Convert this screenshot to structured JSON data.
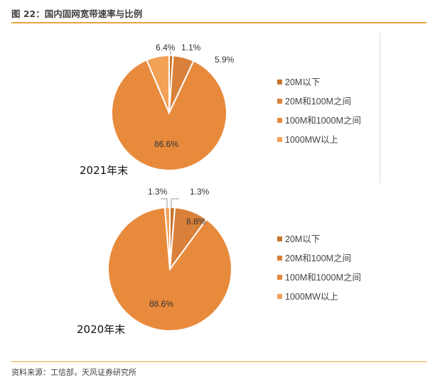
{
  "figure": {
    "title": "图 22：国内固网宽带速率与比例",
    "source": "资料来源：工信部，天风证券研究所"
  },
  "colors": {
    "accent_rule": "#E8A33A",
    "series": [
      "#C8742D",
      "#D9813A",
      "#E88A3C",
      "#F2A157"
    ]
  },
  "chart_data": [
    {
      "type": "pie",
      "title": "2021年末",
      "categories": [
        "20M以下",
        "20M和100M之间",
        "100M和1000M之间",
        "1000MW以上"
      ],
      "values": [
        1.1,
        5.9,
        86.6,
        6.4
      ],
      "labels": [
        "1.1%",
        "5.9%",
        "86.6%",
        "6.4%"
      ],
      "legend": "right"
    },
    {
      "type": "pie",
      "title": "2020年末",
      "categories": [
        "20M以下",
        "20M和100M之间",
        "100M和1000M之间",
        "1000MW以上"
      ],
      "values": [
        1.3,
        8.8,
        88.6,
        1.3
      ],
      "labels": [
        "1.3%",
        "8.8%",
        "88.6%",
        "1.3%"
      ],
      "legend": "right"
    }
  ]
}
